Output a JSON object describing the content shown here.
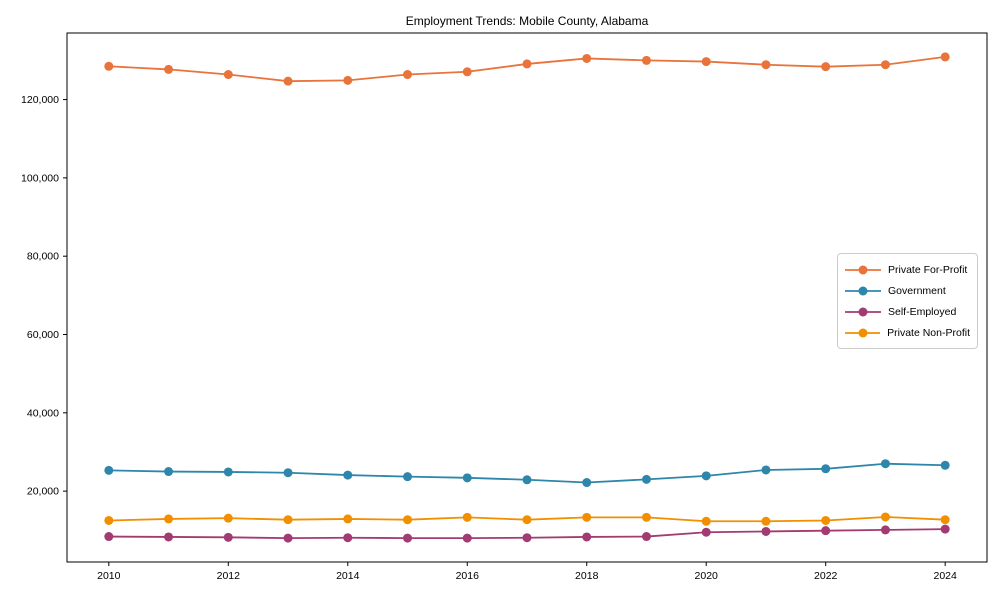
{
  "chart_data": {
    "type": "line",
    "title": "Employment Trends: Mobile County, Alabama",
    "x": [
      2010,
      2011,
      2012,
      2013,
      2014,
      2015,
      2016,
      2017,
      2018,
      2019,
      2020,
      2021,
      2022,
      2023,
      2024
    ],
    "series": [
      {
        "name": "Private For-Profit",
        "color": "#E8743B",
        "values": [
          128500,
          127700,
          126400,
          124700,
          124900,
          126400,
          127100,
          129100,
          130500,
          130000,
          129700,
          128900,
          128400,
          128900,
          130900
        ]
      },
      {
        "name": "Government",
        "color": "#2E86AB",
        "values": [
          25300,
          25000,
          24900,
          24700,
          24100,
          23700,
          23400,
          22900,
          22200,
          23000,
          23900,
          25400,
          25700,
          27000,
          26600
        ]
      },
      {
        "name": "Self-Employed",
        "color": "#A23B72",
        "values": [
          8400,
          8300,
          8200,
          8000,
          8100,
          8000,
          8000,
          8100,
          8300,
          8400,
          9500,
          9700,
          9900,
          10100,
          10300
        ]
      },
      {
        "name": "Private Non-Profit",
        "color": "#F18F01",
        "values": [
          12500,
          12900,
          13100,
          12700,
          12900,
          12700,
          13300,
          12700,
          13300,
          13300,
          12300,
          12300,
          12500,
          13400,
          12700
        ]
      }
    ],
    "xlabel": "",
    "ylabel": "",
    "xlim": [
      2009.3,
      2024.7
    ],
    "ylim": [
      1900,
      137000
    ],
    "xticks": [
      2010,
      2012,
      2014,
      2016,
      2018,
      2020,
      2022,
      2024
    ],
    "yticks": [
      20000,
      40000,
      60000,
      80000,
      100000,
      120000
    ],
    "ytick_labels": [
      "20,000",
      "40,000",
      "60,000",
      "80,000",
      "100,000",
      "120,000"
    ],
    "grid": false,
    "marker": "circle",
    "legend": {
      "location": "center right",
      "labels": [
        "Private For-Profit",
        "Government",
        "Self-Employed",
        "Private Non-Profit"
      ]
    }
  }
}
